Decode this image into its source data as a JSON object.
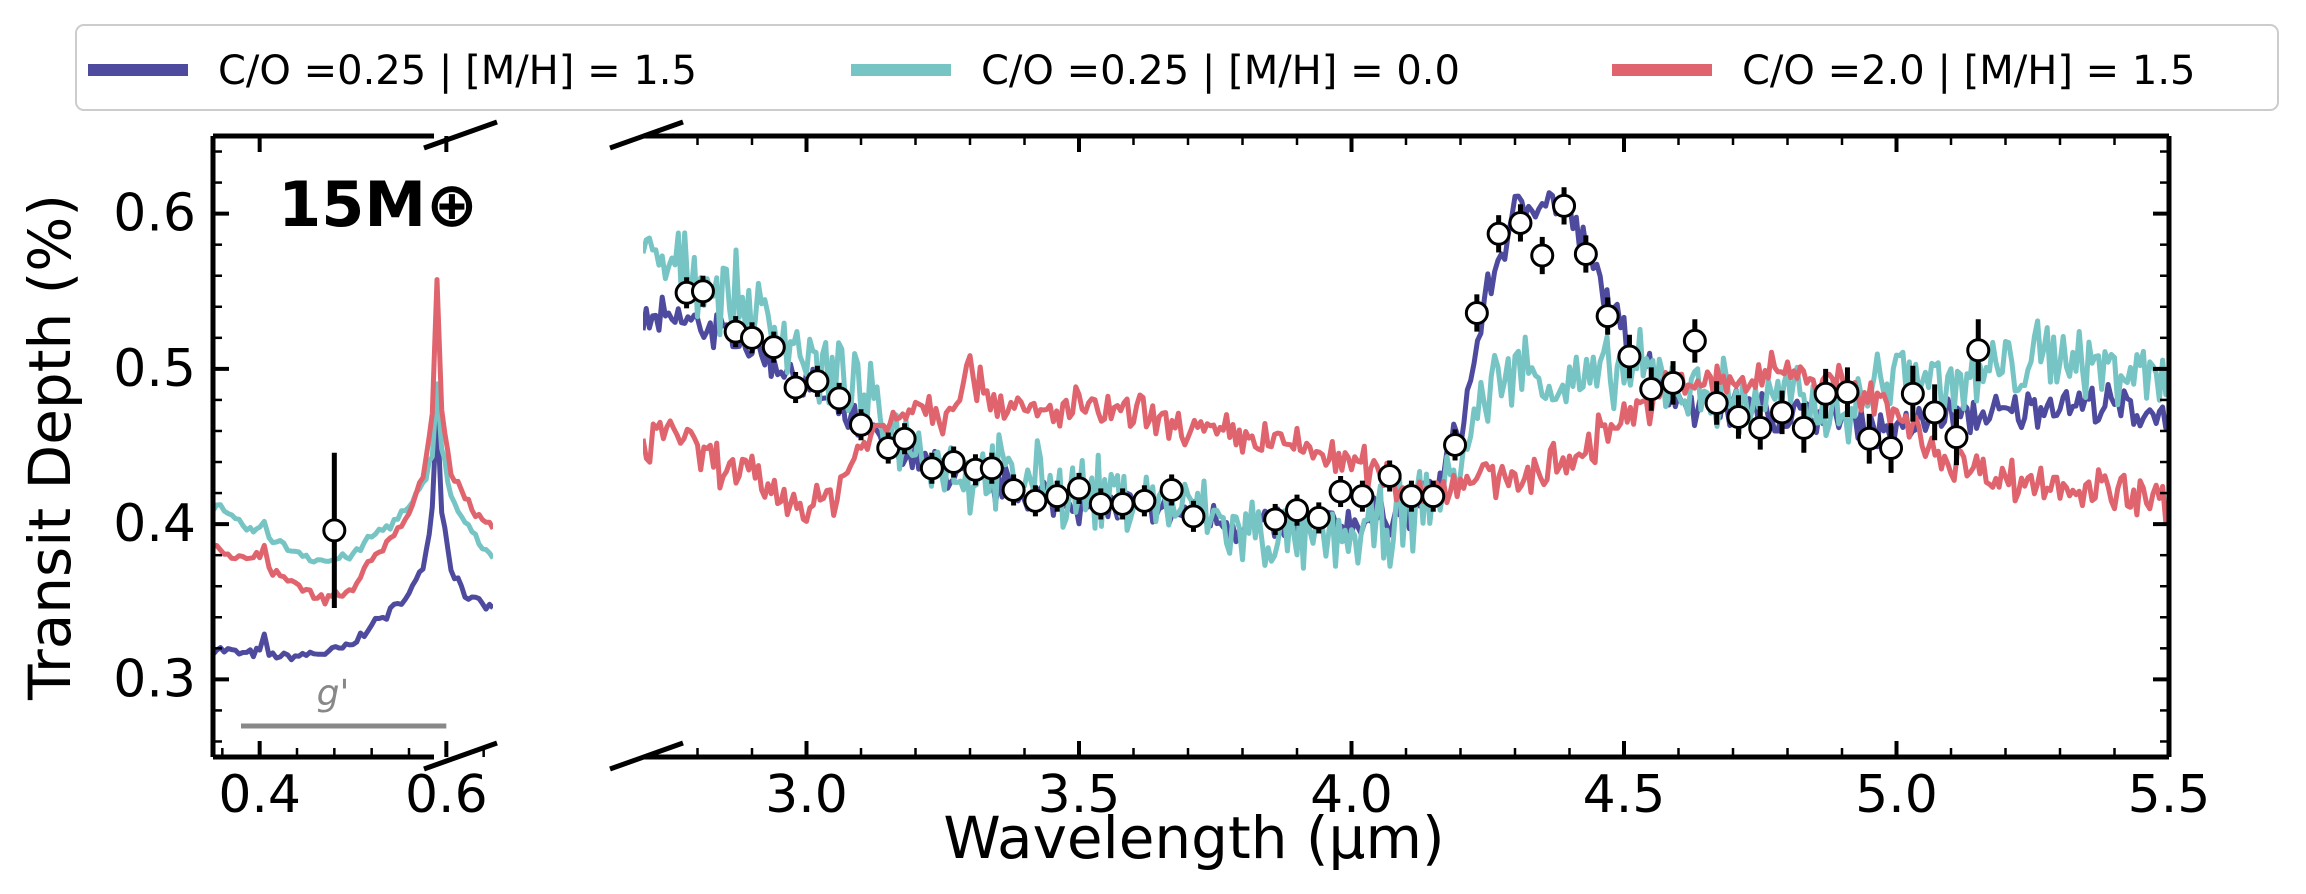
{
  "chart_data": {
    "type": "line",
    "ylabel": "Transit Depth (%)",
    "xlabel": "Wavelength (μm)",
    "panel_label": "15M⊕",
    "band_label": "g'",
    "band": [
      0.38,
      0.6
    ],
    "band_y": 0.27,
    "legend_placement": "top",
    "ylim": [
      0.25,
      0.65
    ],
    "yticks": [
      0.3,
      0.4,
      0.5,
      0.6
    ],
    "left_xlim": [
      0.35,
      0.65
    ],
    "left_xticks": [
      0.4,
      0.6
    ],
    "right_xlim": [
      2.7,
      5.5
    ],
    "right_xticks": [
      3.0,
      3.5,
      4.0,
      4.5,
      5.0,
      5.5
    ],
    "series": [
      {
        "name": "C/O =0.25 |  [M/H] = 1.5",
        "color": "#4e4b9e",
        "left_points": [
          [
            0.35,
            0.32
          ],
          [
            0.37,
            0.318
          ],
          [
            0.39,
            0.316
          ],
          [
            0.4,
            0.318
          ],
          [
            0.405,
            0.326
          ],
          [
            0.41,
            0.316
          ],
          [
            0.43,
            0.314
          ],
          [
            0.45,
            0.316
          ],
          [
            0.47,
            0.317
          ],
          [
            0.5,
            0.322
          ],
          [
            0.52,
            0.336
          ],
          [
            0.54,
            0.343
          ],
          [
            0.56,
            0.355
          ],
          [
            0.575,
            0.372
          ],
          [
            0.585,
            0.41
          ],
          [
            0.59,
            0.48
          ],
          [
            0.595,
            0.41
          ],
          [
            0.605,
            0.372
          ],
          [
            0.62,
            0.356
          ],
          [
            0.635,
            0.348
          ],
          [
            0.65,
            0.346
          ]
        ],
        "right_points": [
          [
            2.7,
            0.53
          ],
          [
            2.8,
            0.53
          ],
          [
            2.9,
            0.515
          ],
          [
            3.0,
            0.49
          ],
          [
            3.1,
            0.46
          ],
          [
            3.2,
            0.44
          ],
          [
            3.3,
            0.43
          ],
          [
            3.4,
            0.42
          ],
          [
            3.5,
            0.415
          ],
          [
            3.6,
            0.41
          ],
          [
            3.7,
            0.405
          ],
          [
            3.8,
            0.4
          ],
          [
            3.9,
            0.398
          ],
          [
            4.0,
            0.4
          ],
          [
            4.1,
            0.41
          ],
          [
            4.15,
            0.42
          ],
          [
            4.2,
            0.46
          ],
          [
            4.25,
            0.55
          ],
          [
            4.3,
            0.6
          ],
          [
            4.35,
            0.61
          ],
          [
            4.4,
            0.6
          ],
          [
            4.45,
            0.56
          ],
          [
            4.5,
            0.52
          ],
          [
            4.6,
            0.48
          ],
          [
            4.7,
            0.475
          ],
          [
            4.8,
            0.47
          ],
          [
            4.9,
            0.47
          ],
          [
            5.0,
            0.46
          ],
          [
            5.1,
            0.47
          ],
          [
            5.2,
            0.47
          ],
          [
            5.3,
            0.48
          ],
          [
            5.4,
            0.475
          ],
          [
            5.5,
            0.47
          ]
        ]
      },
      {
        "name": "C/O =0.25 |  [M/H] = 0.0",
        "color": "#76c4c4",
        "left_points": [
          [
            0.35,
            0.412
          ],
          [
            0.37,
            0.404
          ],
          [
            0.39,
            0.396
          ],
          [
            0.4,
            0.395
          ],
          [
            0.405,
            0.402
          ],
          [
            0.41,
            0.392
          ],
          [
            0.43,
            0.385
          ],
          [
            0.45,
            0.38
          ],
          [
            0.47,
            0.376
          ],
          [
            0.5,
            0.38
          ],
          [
            0.52,
            0.392
          ],
          [
            0.54,
            0.4
          ],
          [
            0.56,
            0.41
          ],
          [
            0.575,
            0.425
          ],
          [
            0.585,
            0.445
          ],
          [
            0.59,
            0.49
          ],
          [
            0.595,
            0.45
          ],
          [
            0.605,
            0.418
          ],
          [
            0.62,
            0.4
          ],
          [
            0.635,
            0.39
          ],
          [
            0.65,
            0.378
          ]
        ],
        "right_points": [
          [
            2.7,
            0.57
          ],
          [
            2.8,
            0.56
          ],
          [
            2.9,
            0.54
          ],
          [
            3.0,
            0.51
          ],
          [
            3.1,
            0.48
          ],
          [
            3.2,
            0.45
          ],
          [
            3.3,
            0.43
          ],
          [
            3.4,
            0.43
          ],
          [
            3.5,
            0.42
          ],
          [
            3.6,
            0.415
          ],
          [
            3.7,
            0.41
          ],
          [
            3.8,
            0.395
          ],
          [
            3.9,
            0.388
          ],
          [
            4.0,
            0.39
          ],
          [
            4.1,
            0.405
          ],
          [
            4.15,
            0.415
          ],
          [
            4.2,
            0.44
          ],
          [
            4.25,
            0.49
          ],
          [
            4.3,
            0.5
          ],
          [
            4.35,
            0.495
          ],
          [
            4.4,
            0.49
          ],
          [
            4.45,
            0.49
          ],
          [
            4.5,
            0.5
          ],
          [
            4.6,
            0.49
          ],
          [
            4.7,
            0.48
          ],
          [
            4.8,
            0.48
          ],
          [
            4.9,
            0.47
          ],
          [
            5.0,
            0.5
          ],
          [
            5.1,
            0.49
          ],
          [
            5.2,
            0.5
          ],
          [
            5.3,
            0.51
          ],
          [
            5.4,
            0.5
          ],
          [
            5.5,
            0.5
          ]
        ]
      },
      {
        "name": "C/O =2.0 |  [M/H] = 1.5",
        "color": "#e0646e",
        "left_points": [
          [
            0.35,
            0.385
          ],
          [
            0.37,
            0.38
          ],
          [
            0.39,
            0.378
          ],
          [
            0.4,
            0.38
          ],
          [
            0.405,
            0.386
          ],
          [
            0.41,
            0.372
          ],
          [
            0.43,
            0.365
          ],
          [
            0.45,
            0.357
          ],
          [
            0.47,
            0.352
          ],
          [
            0.5,
            0.36
          ],
          [
            0.52,
            0.378
          ],
          [
            0.54,
            0.39
          ],
          [
            0.56,
            0.405
          ],
          [
            0.575,
            0.43
          ],
          [
            0.585,
            0.47
          ],
          [
            0.59,
            0.56
          ],
          [
            0.595,
            0.47
          ],
          [
            0.605,
            0.435
          ],
          [
            0.62,
            0.415
          ],
          [
            0.635,
            0.405
          ],
          [
            0.65,
            0.397
          ]
        ],
        "right_points": [
          [
            2.7,
            0.45
          ],
          [
            2.75,
            0.465
          ],
          [
            2.8,
            0.445
          ],
          [
            2.9,
            0.43
          ],
          [
            3.0,
            0.41
          ],
          [
            3.05,
            0.42
          ],
          [
            3.1,
            0.45
          ],
          [
            3.2,
            0.48
          ],
          [
            3.25,
            0.47
          ],
          [
            3.3,
            0.5
          ],
          [
            3.35,
            0.48
          ],
          [
            3.4,
            0.47
          ],
          [
            3.5,
            0.475
          ],
          [
            3.6,
            0.47
          ],
          [
            3.7,
            0.46
          ],
          [
            3.8,
            0.455
          ],
          [
            3.9,
            0.45
          ],
          [
            4.0,
            0.44
          ],
          [
            4.1,
            0.425
          ],
          [
            4.15,
            0.42
          ],
          [
            4.2,
            0.43
          ],
          [
            4.3,
            0.43
          ],
          [
            4.4,
            0.44
          ],
          [
            4.5,
            0.47
          ],
          [
            4.6,
            0.49
          ],
          [
            4.7,
            0.49
          ],
          [
            4.8,
            0.5
          ],
          [
            4.9,
            0.49
          ],
          [
            5.0,
            0.47
          ],
          [
            5.1,
            0.44
          ],
          [
            5.2,
            0.43
          ],
          [
            5.3,
            0.425
          ],
          [
            5.4,
            0.42
          ],
          [
            5.5,
            0.415
          ]
        ]
      }
    ],
    "data_points": {
      "left": [
        {
          "x": 0.48,
          "y": 0.396,
          "err": 0.05
        }
      ],
      "right": [
        {
          "x": 2.78,
          "y": 0.549,
          "err": 0.01
        },
        {
          "x": 2.81,
          "y": 0.55,
          "err": 0.01
        },
        {
          "x": 2.87,
          "y": 0.524,
          "err": 0.01
        },
        {
          "x": 2.9,
          "y": 0.52,
          "err": 0.01
        },
        {
          "x": 2.94,
          "y": 0.514,
          "err": 0.01
        },
        {
          "x": 2.98,
          "y": 0.488,
          "err": 0.01
        },
        {
          "x": 3.02,
          "y": 0.492,
          "err": 0.01
        },
        {
          "x": 3.06,
          "y": 0.481,
          "err": 0.01
        },
        {
          "x": 3.1,
          "y": 0.464,
          "err": 0.01
        },
        {
          "x": 3.15,
          "y": 0.449,
          "err": 0.01
        },
        {
          "x": 3.18,
          "y": 0.455,
          "err": 0.01
        },
        {
          "x": 3.23,
          "y": 0.436,
          "err": 0.01
        },
        {
          "x": 3.27,
          "y": 0.44,
          "err": 0.01
        },
        {
          "x": 3.31,
          "y": 0.435,
          "err": 0.01
        },
        {
          "x": 3.34,
          "y": 0.436,
          "err": 0.01
        },
        {
          "x": 3.38,
          "y": 0.422,
          "err": 0.01
        },
        {
          "x": 3.42,
          "y": 0.415,
          "err": 0.01
        },
        {
          "x": 3.46,
          "y": 0.418,
          "err": 0.01
        },
        {
          "x": 3.5,
          "y": 0.423,
          "err": 0.01
        },
        {
          "x": 3.54,
          "y": 0.413,
          "err": 0.01
        },
        {
          "x": 3.58,
          "y": 0.413,
          "err": 0.01
        },
        {
          "x": 3.62,
          "y": 0.415,
          "err": 0.01
        },
        {
          "x": 3.67,
          "y": 0.422,
          "err": 0.01
        },
        {
          "x": 3.71,
          "y": 0.405,
          "err": 0.01
        },
        {
          "x": 3.86,
          "y": 0.403,
          "err": 0.01
        },
        {
          "x": 3.9,
          "y": 0.409,
          "err": 0.01
        },
        {
          "x": 3.94,
          "y": 0.404,
          "err": 0.01
        },
        {
          "x": 3.98,
          "y": 0.421,
          "err": 0.01
        },
        {
          "x": 4.02,
          "y": 0.418,
          "err": 0.01
        },
        {
          "x": 4.07,
          "y": 0.431,
          "err": 0.01
        },
        {
          "x": 4.11,
          "y": 0.418,
          "err": 0.01
        },
        {
          "x": 4.15,
          "y": 0.418,
          "err": 0.01
        },
        {
          "x": 4.19,
          "y": 0.451,
          "err": 0.01
        },
        {
          "x": 4.23,
          "y": 0.536,
          "err": 0.012
        },
        {
          "x": 4.27,
          "y": 0.587,
          "err": 0.012
        },
        {
          "x": 4.31,
          "y": 0.594,
          "err": 0.012
        },
        {
          "x": 4.35,
          "y": 0.573,
          "err": 0.012
        },
        {
          "x": 4.39,
          "y": 0.605,
          "err": 0.012
        },
        {
          "x": 4.43,
          "y": 0.574,
          "err": 0.012
        },
        {
          "x": 4.47,
          "y": 0.534,
          "err": 0.012
        },
        {
          "x": 4.51,
          "y": 0.508,
          "err": 0.014
        },
        {
          "x": 4.55,
          "y": 0.487,
          "err": 0.014
        },
        {
          "x": 4.59,
          "y": 0.491,
          "err": 0.014
        },
        {
          "x": 4.63,
          "y": 0.518,
          "err": 0.014
        },
        {
          "x": 4.67,
          "y": 0.478,
          "err": 0.014
        },
        {
          "x": 4.71,
          "y": 0.469,
          "err": 0.014
        },
        {
          "x": 4.75,
          "y": 0.462,
          "err": 0.014
        },
        {
          "x": 4.79,
          "y": 0.472,
          "err": 0.014
        },
        {
          "x": 4.83,
          "y": 0.462,
          "err": 0.016
        },
        {
          "x": 4.87,
          "y": 0.484,
          "err": 0.016
        },
        {
          "x": 4.91,
          "y": 0.485,
          "err": 0.016
        },
        {
          "x": 4.95,
          "y": 0.455,
          "err": 0.016
        },
        {
          "x": 4.99,
          "y": 0.449,
          "err": 0.016
        },
        {
          "x": 5.03,
          "y": 0.484,
          "err": 0.018
        },
        {
          "x": 5.07,
          "y": 0.472,
          "err": 0.018
        },
        {
          "x": 5.11,
          "y": 0.456,
          "err": 0.018
        },
        {
          "x": 5.15,
          "y": 0.512,
          "err": 0.02
        }
      ]
    }
  }
}
